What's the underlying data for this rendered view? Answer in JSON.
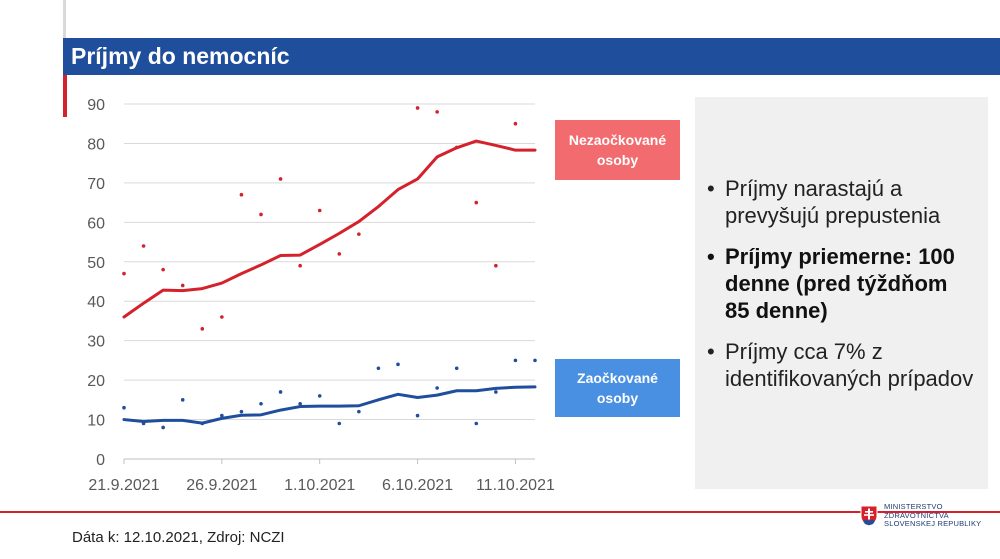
{
  "header": {
    "title": "Príjmy do nemocníc"
  },
  "legend": {
    "unvaccinated": "Nezaočkované osoby",
    "vaccinated": "Zaočkované osoby"
  },
  "panel": {
    "bullets": [
      {
        "text": "Príjmy narastajú a prevyšujú prepustenia",
        "bold": false
      },
      {
        "text": "Príjmy priemerne: 100 denne (pred týždňom 85 denne)",
        "bold": true
      },
      {
        "text": "Príjmy cca 7% z identifikovaných prípadov",
        "bold": false
      }
    ]
  },
  "footer": {
    "source": "Dáta k: 12.10.2021, Zdroj: NCZI"
  },
  "ministry": {
    "line1": "MINISTERSTVO",
    "line2": "ZDRAVOTNÍCTVA",
    "line3": "SLOVENSKEJ REPUBLIKY"
  },
  "colors": {
    "header_bg": "#1f4e9c",
    "red": "#d4212b",
    "blue": "#1f4e9c",
    "red_legend": "#f26b6f",
    "blue_legend": "#4a90e2"
  },
  "chart_data": {
    "type": "line",
    "title": "Príjmy do nemocníc",
    "xlabel": "",
    "ylabel": "",
    "ylim": [
      0,
      90
    ],
    "yticks": [
      0,
      10,
      20,
      30,
      40,
      50,
      60,
      70,
      80,
      90
    ],
    "xlim": [
      0,
      21
    ],
    "x_tick_positions": [
      0,
      5,
      10,
      15,
      20
    ],
    "x_tick_labels": [
      "21.9.2021",
      "26.9.2021",
      "1.10.2021",
      "6.10.2021",
      "11.10.2021"
    ],
    "series": [
      {
        "name": "Nezaočkované osoby",
        "kind": "moving_average",
        "color": "#d4212b",
        "values": [
          36,
          39.5,
          42.8,
          42.7,
          43.2,
          44.6,
          47,
          49.2,
          51.6,
          51.7,
          54.4,
          57.2,
          60.2,
          64,
          68.3,
          71,
          76.6,
          78.9,
          80.6,
          79.5,
          78.3,
          78.3
        ]
      },
      {
        "name": "Nezaočkované osoby (denné)",
        "kind": "points",
        "color": "#d4212b",
        "values": [
          47,
          54,
          48,
          44,
          33,
          36,
          67,
          62,
          71,
          49,
          63,
          52,
          57,
          null,
          null,
          89,
          88,
          79,
          65,
          49,
          85,
          null
        ]
      },
      {
        "name": "Zaočkované osoby",
        "kind": "moving_average",
        "color": "#1f4e9c",
        "values": [
          10,
          9.5,
          9.8,
          9.8,
          9.1,
          10.3,
          11.1,
          11.2,
          12.4,
          13.3,
          13.4,
          13.4,
          13.5,
          15,
          16.4,
          15.6,
          16.2,
          17.3,
          17.3,
          17.9,
          18.2,
          18.3
        ]
      },
      {
        "name": "Zaočkované osoby (denné)",
        "kind": "points",
        "color": "#1f4e9c",
        "values": [
          13,
          9,
          8,
          15,
          9,
          11,
          12,
          14,
          17,
          14,
          16,
          9,
          12,
          23,
          24,
          11,
          18,
          23,
          9,
          17,
          25,
          25
        ]
      }
    ]
  }
}
